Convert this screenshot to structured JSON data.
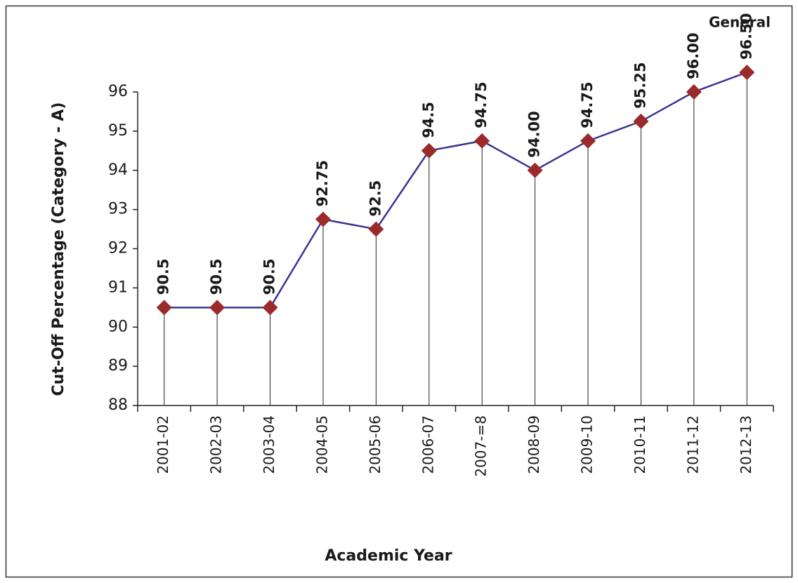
{
  "chart_data": {
    "type": "line",
    "x_label": "Academic Year",
    "y_label": "Cut-Off Percentage (Category - A)",
    "categories": [
      "2001-02",
      "2002-03",
      "2003-04",
      "2004-05",
      "2005-06",
      "2006-07",
      "2007-=8",
      "2008-09",
      "2009-10",
      "2010-11",
      "2011-12",
      "2012-13"
    ],
    "series": [
      {
        "name": "General",
        "color": "#3a3591",
        "marker_color": "#9b2b2b",
        "values": [
          90.5,
          90.5,
          90.5,
          92.75,
          92.5,
          94.5,
          94.75,
          94.0,
          94.75,
          95.25,
          96.0,
          96.5
        ],
        "value_labels": [
          "90.5",
          "90.5",
          "90.5",
          "92.75",
          "92.5",
          "94.5",
          "94.75",
          "94.00",
          "94.75",
          "95.25",
          "96.00",
          "96.50"
        ]
      }
    ],
    "ylim": [
      88,
      96
    ],
    "yticks": [
      88,
      89,
      90,
      91,
      92,
      93,
      94,
      95,
      96
    ]
  }
}
